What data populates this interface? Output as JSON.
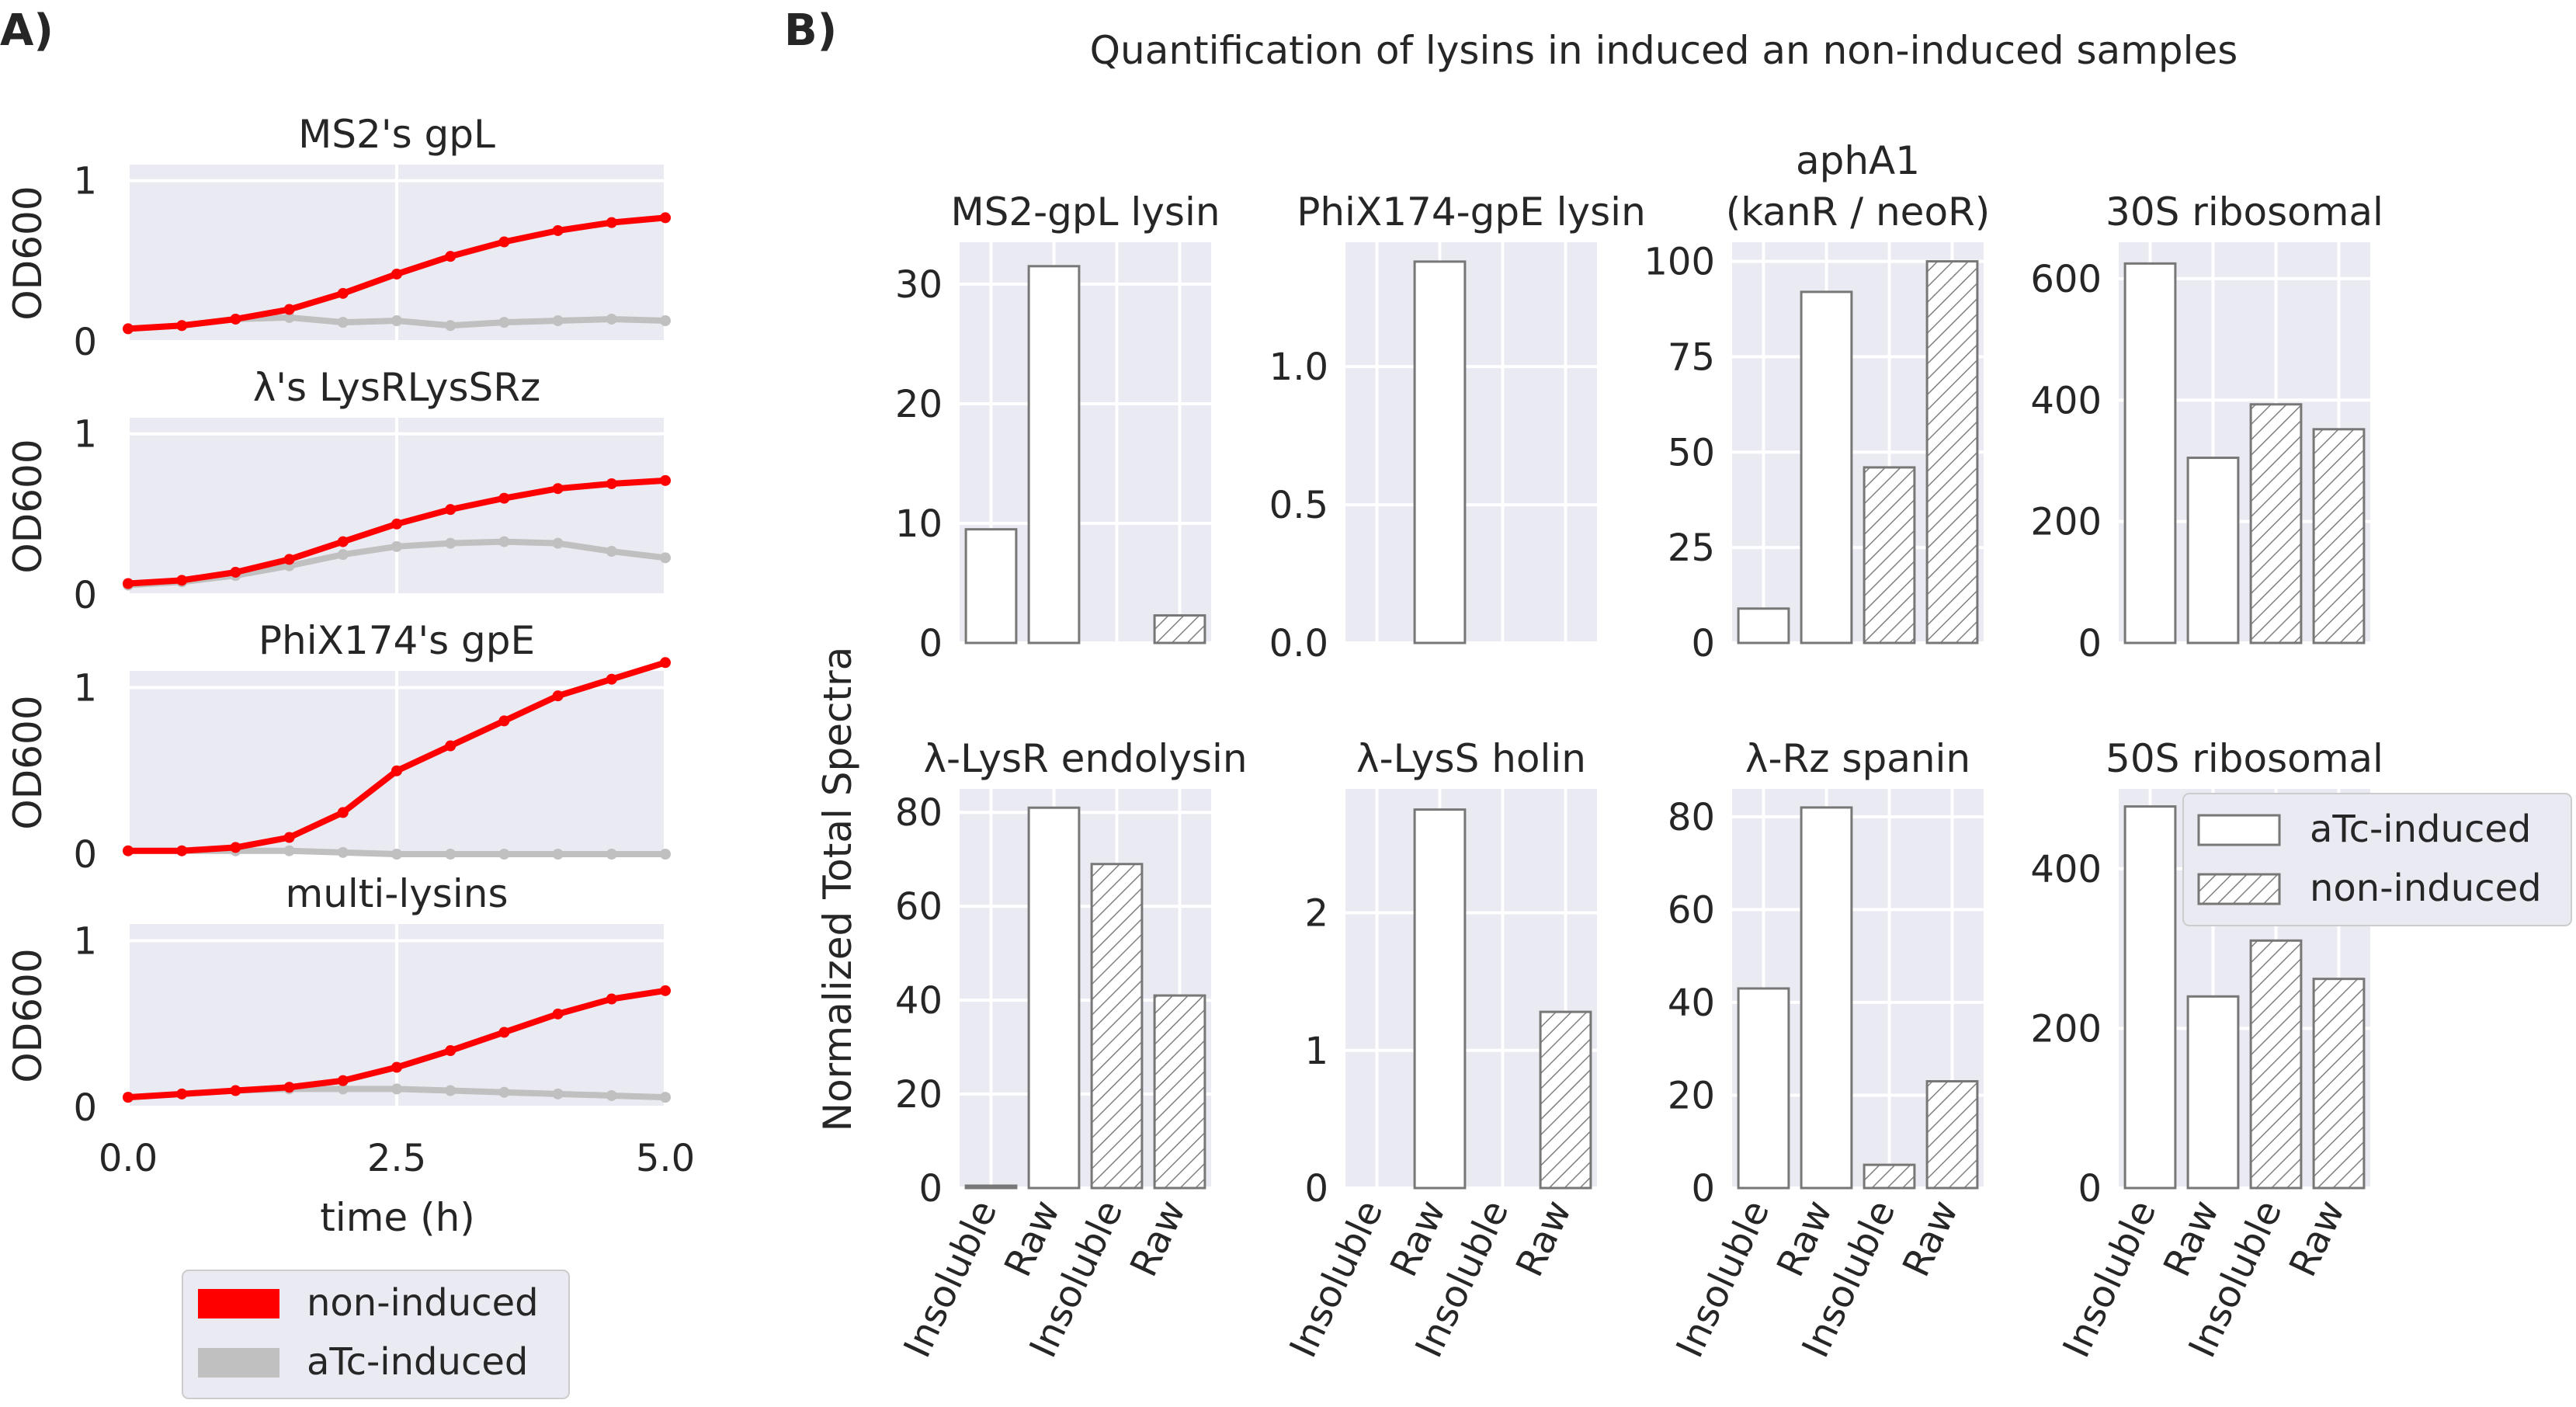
{
  "panel_a": {
    "label": "A)",
    "ylabel": "OD600",
    "xlabel": "time (h)",
    "x_ticks": [
      "0.0",
      "2.5",
      "5.0"
    ],
    "y_ticks": [
      "0",
      "1"
    ],
    "legend": [
      {
        "label": "non-induced",
        "color": "#ff0000"
      },
      {
        "label": "aTc-induced",
        "color": "#c0c0c0"
      }
    ]
  },
  "panel_b": {
    "label": "B)",
    "title": "Quantification of lysins in induced an non-induced samples",
    "ylabel": "Normalized Total Spectra",
    "x_ticks": [
      "Insoluble",
      "Raw",
      "Insoluble",
      "Raw"
    ],
    "legend": [
      {
        "label": "aTc-induced",
        "pattern": "none"
      },
      {
        "label": "non-induced",
        "pattern": "hatch"
      }
    ]
  },
  "colors": {
    "axes_bg": "#eaeaf2",
    "grid": "#ffffff",
    "non_induced": "#ff0000",
    "induced": "#c0c0c0",
    "bar_edge": "#777777",
    "hatch": "#808080"
  },
  "chart_data": [
    {
      "type": "line",
      "title": "MS2's gpL",
      "xlim": [
        0,
        5
      ],
      "ylim": [
        0,
        1.1
      ],
      "series": [
        {
          "name": "non-induced",
          "x": [
            0,
            0.5,
            1,
            1.5,
            2,
            2.5,
            3,
            3.5,
            4,
            4.5,
            5
          ],
          "values": [
            0.08,
            0.1,
            0.14,
            0.2,
            0.3,
            0.42,
            0.53,
            0.62,
            0.69,
            0.74,
            0.77
          ]
        },
        {
          "name": "aTc-induced",
          "x": [
            0,
            0.5,
            1,
            1.5,
            2,
            2.5,
            3,
            3.5,
            4,
            4.5,
            5
          ],
          "values": [
            0.08,
            0.1,
            0.14,
            0.15,
            0.12,
            0.13,
            0.1,
            0.12,
            0.13,
            0.14,
            0.13
          ]
        }
      ]
    },
    {
      "type": "line",
      "title": "λ's LysRLysSRz",
      "xlim": [
        0,
        5
      ],
      "ylim": [
        0,
        1.1
      ],
      "series": [
        {
          "name": "non-induced",
          "x": [
            0,
            0.5,
            1,
            1.5,
            2,
            2.5,
            3,
            3.5,
            4,
            4.5,
            5
          ],
          "values": [
            0.07,
            0.09,
            0.14,
            0.22,
            0.33,
            0.44,
            0.53,
            0.6,
            0.66,
            0.69,
            0.71
          ]
        },
        {
          "name": "aTc-induced",
          "x": [
            0,
            0.5,
            1,
            1.5,
            2,
            2.5,
            3,
            3.5,
            4,
            4.5,
            5
          ],
          "values": [
            0.06,
            0.08,
            0.12,
            0.18,
            0.25,
            0.3,
            0.32,
            0.33,
            0.32,
            0.27,
            0.23
          ]
        }
      ]
    },
    {
      "type": "line",
      "title": "PhiX174's gpE",
      "xlim": [
        0,
        5
      ],
      "ylim": [
        0,
        1.1
      ],
      "series": [
        {
          "name": "non-induced",
          "x": [
            0,
            0.5,
            1,
            1.5,
            2,
            2.5,
            3,
            3.5,
            4,
            4.5,
            5
          ],
          "values": [
            0.02,
            0.02,
            0.04,
            0.1,
            0.25,
            0.5,
            0.65,
            0.8,
            0.95,
            1.05,
            1.15
          ]
        },
        {
          "name": "aTc-induced",
          "x": [
            0,
            0.5,
            1,
            1.5,
            2,
            2.5,
            3,
            3.5,
            4,
            4.5,
            5
          ],
          "values": [
            0.02,
            0.02,
            0.02,
            0.02,
            0.01,
            0.0,
            0.0,
            0.0,
            0.0,
            0.0,
            0.0
          ]
        }
      ]
    },
    {
      "type": "line",
      "title": "multi-lysins",
      "xlim": [
        0,
        5
      ],
      "ylim": [
        0,
        1.1
      ],
      "series": [
        {
          "name": "non-induced",
          "x": [
            0,
            0.5,
            1,
            1.5,
            2,
            2.5,
            3,
            3.5,
            4,
            4.5,
            5
          ],
          "values": [
            0.06,
            0.08,
            0.1,
            0.12,
            0.16,
            0.24,
            0.34,
            0.45,
            0.56,
            0.65,
            0.7
          ]
        },
        {
          "name": "aTc-induced",
          "x": [
            0,
            0.5,
            1,
            1.5,
            2,
            2.5,
            3,
            3.5,
            4,
            4.5,
            5
          ],
          "values": [
            0.06,
            0.08,
            0.1,
            0.11,
            0.11,
            0.11,
            0.1,
            0.09,
            0.08,
            0.07,
            0.06
          ]
        }
      ]
    },
    {
      "type": "bar",
      "title": "MS2-gpL lysin",
      "categories": [
        "Insoluble",
        "Raw",
        "Insoluble",
        "Raw"
      ],
      "values": [
        9.5,
        31.5,
        0,
        2.3
      ],
      "ylim": [
        0,
        33.5
      ],
      "yticks": [
        "0",
        "10",
        "20",
        "30"
      ]
    },
    {
      "type": "bar",
      "title": "PhiX174-gpE lysin",
      "categories": [
        "Insoluble",
        "Raw",
        "Insoluble",
        "Raw"
      ],
      "values": [
        0,
        1.38,
        0,
        0
      ],
      "ylim": [
        0,
        1.45
      ],
      "yticks": [
        "0.0",
        "0.5",
        "1.0"
      ]
    },
    {
      "type": "bar",
      "title": "aphA1 (kanR / neoR)",
      "title_lines": [
        "aphA1",
        "(kanR / neoR)"
      ],
      "categories": [
        "Insoluble",
        "Raw",
        "Insoluble",
        "Raw"
      ],
      "values": [
        9,
        92,
        46,
        100
      ],
      "ylim": [
        0,
        105
      ],
      "yticks": [
        "0",
        "25",
        "50",
        "75",
        "100"
      ]
    },
    {
      "type": "bar",
      "title": "30S ribosomal",
      "categories": [
        "Insoluble",
        "Raw",
        "Insoluble",
        "Raw"
      ],
      "values": [
        625,
        305,
        393,
        352
      ],
      "ylim": [
        0,
        660
      ],
      "yticks": [
        "0",
        "200",
        "400",
        "600"
      ]
    },
    {
      "type": "bar",
      "title": "λ-LysR endolysin",
      "categories": [
        "Insoluble",
        "Raw",
        "Insoluble",
        "Raw"
      ],
      "values": [
        0.5,
        81,
        69,
        41
      ],
      "ylim": [
        0,
        85
      ],
      "yticks": [
        "0",
        "20",
        "40",
        "60",
        "80"
      ]
    },
    {
      "type": "bar",
      "title": "λ-LysS holin",
      "categories": [
        "Insoluble",
        "Raw",
        "Insoluble",
        "Raw"
      ],
      "values": [
        0,
        2.75,
        0,
        1.28
      ],
      "ylim": [
        0,
        2.9
      ],
      "yticks": [
        "0",
        "1",
        "2"
      ]
    },
    {
      "type": "bar",
      "title": "λ-Rz spanin",
      "categories": [
        "Insoluble",
        "Raw",
        "Insoluble",
        "Raw"
      ],
      "values": [
        43,
        82,
        5,
        23
      ],
      "ylim": [
        0,
        86
      ],
      "yticks": [
        "0",
        "20",
        "40",
        "60",
        "80"
      ]
    },
    {
      "type": "bar",
      "title": "50S ribosomal",
      "categories": [
        "Insoluble",
        "Raw",
        "Insoluble",
        "Raw"
      ],
      "values": [
        478,
        240,
        310,
        262
      ],
      "ylim": [
        0,
        500
      ],
      "yticks": [
        "0",
        "200",
        "400"
      ]
    }
  ]
}
